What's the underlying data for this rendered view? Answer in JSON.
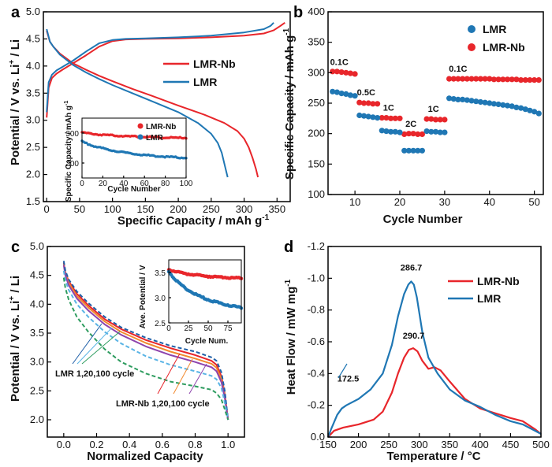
{
  "colors": {
    "lmr": "#1f77b4",
    "lmrnb": "#e8262b",
    "axis": "#000000"
  },
  "chart_data": [
    {
      "panel": "a",
      "type": "line",
      "xlabel": "Specific Capacity / mAh g",
      "xlabel_sup": "-1",
      "ylabel_parts": [
        "Potential / V vs. Li",
        "+",
        " / Li"
      ],
      "xlim": [
        -5,
        370
      ],
      "ylim": [
        1.5,
        5.0
      ],
      "xticks": [
        0,
        50,
        100,
        150,
        200,
        250,
        300,
        350
      ],
      "yticks": [
        1.5,
        2.0,
        2.5,
        3.0,
        3.5,
        4.0,
        4.5,
        5.0
      ],
      "legend": [
        {
          "name": "LMR-Nb",
          "color": "#e8262b"
        },
        {
          "name": "LMR",
          "color": "#1f77b4"
        }
      ],
      "series": [
        {
          "name": "LMR-Nb charge",
          "color": "#e8262b",
          "x": [
            0,
            3,
            8,
            15,
            25,
            40,
            60,
            80,
            100,
            120,
            150,
            200,
            250,
            300,
            330,
            345,
            355,
            362
          ],
          "y": [
            3.05,
            3.6,
            3.78,
            3.86,
            3.94,
            4.05,
            4.2,
            4.36,
            4.46,
            4.49,
            4.5,
            4.51,
            4.53,
            4.56,
            4.6,
            4.66,
            4.74,
            4.8
          ]
        },
        {
          "name": "LMR-Nb discharge",
          "color": "#e8262b",
          "x": [
            0,
            5,
            10,
            20,
            40,
            60,
            80,
            100,
            130,
            160,
            200,
            240,
            270,
            290,
            300,
            307,
            313,
            318,
            321
          ],
          "y": [
            4.65,
            4.45,
            4.36,
            4.23,
            4.05,
            3.93,
            3.82,
            3.72,
            3.58,
            3.45,
            3.27,
            3.1,
            2.95,
            2.8,
            2.66,
            2.5,
            2.3,
            2.1,
            1.95
          ]
        },
        {
          "name": "LMR charge",
          "color": "#1f77b4",
          "x": [
            0,
            3,
            8,
            15,
            25,
            40,
            60,
            80,
            100,
            120,
            150,
            200,
            250,
            300,
            330,
            340,
            345
          ],
          "y": [
            3.15,
            3.7,
            3.84,
            3.92,
            3.99,
            4.1,
            4.27,
            4.42,
            4.48,
            4.5,
            4.51,
            4.53,
            4.56,
            4.62,
            4.68,
            4.74,
            4.8
          ]
        },
        {
          "name": "LMR discharge",
          "color": "#1f77b4",
          "x": [
            0,
            5,
            10,
            20,
            40,
            60,
            80,
            100,
            130,
            160,
            200,
            230,
            250,
            260,
            266,
            270,
            273,
            275
          ],
          "y": [
            4.68,
            4.45,
            4.36,
            4.21,
            4.02,
            3.88,
            3.76,
            3.65,
            3.5,
            3.35,
            3.15,
            2.95,
            2.75,
            2.58,
            2.4,
            2.2,
            2.05,
            1.95
          ]
        }
      ],
      "inset": {
        "xlabel": "Cycle Number",
        "ylabel": "Specific Capacity / mAh g",
        "ylabel_sup": "-1",
        "xlim": [
          0,
          100
        ],
        "ylim": [
          150,
          350
        ],
        "xticks": [
          0,
          20,
          40,
          60,
          80,
          100
        ],
        "yticks": [
          200,
          300
        ],
        "legend": [
          {
            "name": "LMR-Nb",
            "color": "#e8262b"
          },
          {
            "name": "LMR",
            "color": "#1f77b4"
          }
        ],
        "series": [
          {
            "name": "LMR-Nb",
            "color": "#e8262b",
            "start": 302,
            "end": 283
          },
          {
            "name": "LMR",
            "color": "#1f77b4",
            "start": 272,
            "end": 215
          }
        ]
      }
    },
    {
      "panel": "b",
      "type": "scatter",
      "xlabel": "Cycle Number",
      "ylabel": "Specific Capacity / mAh g",
      "ylabel_sup": "-1",
      "xlim": [
        4,
        52
      ],
      "ylim": [
        100,
        400
      ],
      "xticks": [
        10,
        20,
        30,
        40,
        50
      ],
      "yticks": [
        100,
        150,
        200,
        250,
        300,
        350,
        400
      ],
      "legend": [
        {
          "name": "LMR",
          "color": "#1f77b4"
        },
        {
          "name": "LMR-Nb",
          "color": "#e8262b"
        }
      ],
      "rate_labels": [
        {
          "text": "0.1C",
          "x": 6.5,
          "y": 313
        },
        {
          "text": "0.5C",
          "x": 12.5,
          "y": 263
        },
        {
          "text": "1C",
          "x": 17.5,
          "y": 238
        },
        {
          "text": "2C",
          "x": 22.5,
          "y": 211
        },
        {
          "text": "1C",
          "x": 27.5,
          "y": 236
        },
        {
          "text": "0.1C",
          "x": 33,
          "y": 302
        }
      ],
      "series": [
        {
          "name": "LMR-Nb",
          "color": "#e8262b",
          "x": [
            5,
            6,
            7,
            8,
            9,
            10,
            11,
            12,
            13,
            14,
            15,
            16,
            17,
            18,
            19,
            20,
            21,
            22,
            23,
            24,
            25,
            26,
            27,
            28,
            29,
            30,
            31,
            32,
            33,
            34,
            35,
            36,
            37,
            38,
            39,
            40,
            41,
            42,
            43,
            44,
            45,
            46,
            47,
            48,
            49,
            50,
            51
          ],
          "y": [
            302,
            302,
            301,
            300,
            299,
            298,
            251,
            250,
            250,
            249,
            249,
            226,
            226,
            225,
            225,
            225,
            199,
            200,
            200,
            199,
            199,
            224,
            224,
            223,
            223,
            223,
            290,
            290,
            290,
            290,
            290,
            290,
            290,
            290,
            290,
            290,
            289,
            289,
            289,
            289,
            289,
            289,
            288,
            288,
            288,
            288,
            288
          ]
        },
        {
          "name": "LMR",
          "color": "#1f77b4",
          "x": [
            5,
            6,
            7,
            8,
            9,
            10,
            11,
            12,
            13,
            14,
            15,
            16,
            17,
            18,
            19,
            20,
            21,
            22,
            23,
            24,
            25,
            26,
            27,
            28,
            29,
            30,
            31,
            32,
            33,
            34,
            35,
            36,
            37,
            38,
            39,
            40,
            41,
            42,
            43,
            44,
            45,
            46,
            47,
            48,
            49,
            50,
            51
          ],
          "y": [
            269,
            268,
            266,
            265,
            263,
            262,
            230,
            229,
            228,
            227,
            226,
            205,
            204,
            203,
            203,
            202,
            172,
            172,
            172,
            172,
            172,
            204,
            203,
            203,
            202,
            202,
            258,
            257,
            256,
            256,
            255,
            254,
            253,
            252,
            251,
            250,
            249,
            248,
            247,
            246,
            245,
            243,
            242,
            240,
            238,
            236,
            233
          ]
        }
      ]
    },
    {
      "panel": "c",
      "type": "line",
      "xlabel": "Normalized Capacity",
      "ylabel_parts": [
        "Potential / V vs. Li",
        "+",
        " / Li"
      ],
      "xlim": [
        -0.1,
        1.1
      ],
      "ylim": [
        1.7,
        5.0
      ],
      "xticks": [
        0.0,
        0.2,
        0.4,
        0.6,
        0.8,
        1.0
      ],
      "yticks": [
        2.0,
        2.5,
        3.0,
        3.5,
        4.0,
        4.5,
        5.0
      ],
      "annotations": [
        "LMR 1,20,100 cycle",
        "LMR-Nb 1,20,100 cycle"
      ],
      "series": [
        {
          "name": "LMR-Nb cycle 1",
          "color": "#e8262b",
          "style": "solid",
          "x": [
            0,
            0.01,
            0.03,
            0.08,
            0.15,
            0.25,
            0.35,
            0.5,
            0.65,
            0.8,
            0.9,
            0.93,
            0.96,
            0.98,
            1.0
          ],
          "y": [
            4.72,
            4.55,
            4.4,
            4.18,
            3.98,
            3.74,
            3.57,
            3.38,
            3.24,
            3.12,
            3.02,
            2.95,
            2.75,
            2.45,
            2.0
          ]
        },
        {
          "name": "LMR-Nb cycle 20",
          "color": "#f28a2e",
          "style": "solid",
          "x": [
            0,
            0.01,
            0.03,
            0.08,
            0.15,
            0.25,
            0.35,
            0.5,
            0.65,
            0.8,
            0.9,
            0.93,
            0.96,
            0.98,
            1.0
          ],
          "y": [
            4.7,
            4.53,
            4.37,
            4.14,
            3.94,
            3.7,
            3.52,
            3.33,
            3.18,
            3.06,
            2.97,
            2.9,
            2.7,
            2.42,
            2.0
          ]
        },
        {
          "name": "LMR-Nb cycle 100",
          "color": "#8e44ad",
          "style": "solid",
          "x": [
            0,
            0.01,
            0.03,
            0.08,
            0.15,
            0.25,
            0.35,
            0.5,
            0.65,
            0.8,
            0.9,
            0.93,
            0.96,
            0.98,
            1.0
          ],
          "y": [
            4.68,
            4.5,
            4.33,
            4.1,
            3.89,
            3.65,
            3.47,
            3.27,
            3.12,
            3.0,
            2.91,
            2.84,
            2.65,
            2.38,
            2.0
          ]
        },
        {
          "name": "LMR cycle 1",
          "color": "#1f5fa8",
          "style": "dashed",
          "x": [
            0,
            0.01,
            0.03,
            0.08,
            0.15,
            0.25,
            0.35,
            0.5,
            0.65,
            0.8,
            0.9,
            0.93,
            0.96,
            0.98,
            1.0
          ],
          "y": [
            4.75,
            4.58,
            4.43,
            4.22,
            4.02,
            3.78,
            3.6,
            3.42,
            3.28,
            3.18,
            3.08,
            3.02,
            2.82,
            2.5,
            2.0
          ]
        },
        {
          "name": "LMR cycle 20",
          "color": "#5ab4e5",
          "style": "dashed",
          "x": [
            0,
            0.01,
            0.03,
            0.08,
            0.15,
            0.25,
            0.35,
            0.5,
            0.65,
            0.8,
            0.9,
            0.93,
            0.96,
            0.98,
            1.0
          ],
          "y": [
            4.58,
            4.42,
            4.25,
            4.0,
            3.78,
            3.52,
            3.32,
            3.1,
            2.95,
            2.84,
            2.76,
            2.7,
            2.55,
            2.3,
            2.0
          ]
        },
        {
          "name": "LMR cycle 100",
          "color": "#2e9c5f",
          "style": "dashed",
          "x": [
            0,
            0.01,
            0.03,
            0.08,
            0.15,
            0.25,
            0.35,
            0.5,
            0.65,
            0.8,
            0.9,
            0.93,
            0.96,
            0.98,
            1.0
          ],
          "y": [
            4.46,
            4.28,
            4.08,
            3.78,
            3.52,
            3.22,
            3.0,
            2.8,
            2.66,
            2.58,
            2.52,
            2.46,
            2.35,
            2.18,
            2.0
          ]
        }
      ],
      "inset": {
        "xlabel": "Cycle Num.",
        "ylabel": "Ave. Potential / V",
        "xlim": [
          0,
          92
        ],
        "ylim": [
          2.5,
          3.75
        ],
        "xticks": [
          0,
          25,
          50,
          75
        ],
        "yticks": [
          2.5,
          3.0,
          3.5
        ],
        "series": [
          {
            "name": "LMR-Nb",
            "color": "#e8262b",
            "start": 3.56,
            "end": 3.38
          },
          {
            "name": "LMR",
            "color": "#1f77b4",
            "start": 3.52,
            "end": 2.78
          }
        ]
      }
    },
    {
      "panel": "d",
      "type": "line",
      "xlabel": "Temperature / °C",
      "ylabel": "Heat Flow / mW mg",
      "ylabel_sup": "-1",
      "xlim": [
        150,
        500
      ],
      "ylim": [
        0.0,
        -1.2
      ],
      "xticks": [
        150,
        200,
        250,
        300,
        350,
        400,
        450,
        500
      ],
      "yticks": [
        0.0,
        -0.2,
        -0.4,
        -0.6,
        -0.8,
        -1.0,
        -1.2
      ],
      "legend": [
        {
          "name": "LMR-Nb",
          "color": "#e8262b"
        },
        {
          "name": "LMR",
          "color": "#1f77b4"
        }
      ],
      "peak_labels": [
        {
          "text": "286.7",
          "x": 286.7,
          "y": -1.05
        },
        {
          "text": "290.7",
          "x": 290.7,
          "y": -0.62
        },
        {
          "text": "172.5",
          "x": 183,
          "y": -0.35
        }
      ],
      "series": [
        {
          "name": "LMR-Nb",
          "color": "#e8262b",
          "x": [
            150,
            160,
            175,
            200,
            225,
            240,
            255,
            265,
            275,
            283,
            290,
            297,
            305,
            315,
            325,
            335,
            350,
            375,
            400,
            425,
            450,
            470,
            490,
            500
          ],
          "y": [
            0.0,
            -0.04,
            -0.06,
            -0.08,
            -0.11,
            -0.16,
            -0.28,
            -0.4,
            -0.5,
            -0.55,
            -0.56,
            -0.54,
            -0.48,
            -0.43,
            -0.44,
            -0.42,
            -0.35,
            -0.24,
            -0.18,
            -0.15,
            -0.12,
            -0.1,
            -0.05,
            -0.02
          ]
        },
        {
          "name": "LMR",
          "color": "#1f77b4",
          "x": [
            150,
            155,
            165,
            172.5,
            180,
            200,
            220,
            240,
            255,
            265,
            275,
            282,
            286.7,
            291,
            296,
            305,
            315,
            330,
            350,
            375,
            400,
            425,
            450,
            470,
            490,
            500
          ],
          "y": [
            0.0,
            -0.05,
            -0.14,
            -0.18,
            -0.2,
            -0.24,
            -0.3,
            -0.4,
            -0.58,
            -0.76,
            -0.9,
            -0.96,
            -0.98,
            -0.96,
            -0.88,
            -0.66,
            -0.5,
            -0.4,
            -0.3,
            -0.23,
            -0.19,
            -0.14,
            -0.1,
            -0.08,
            -0.04,
            -0.02
          ]
        }
      ]
    }
  ]
}
